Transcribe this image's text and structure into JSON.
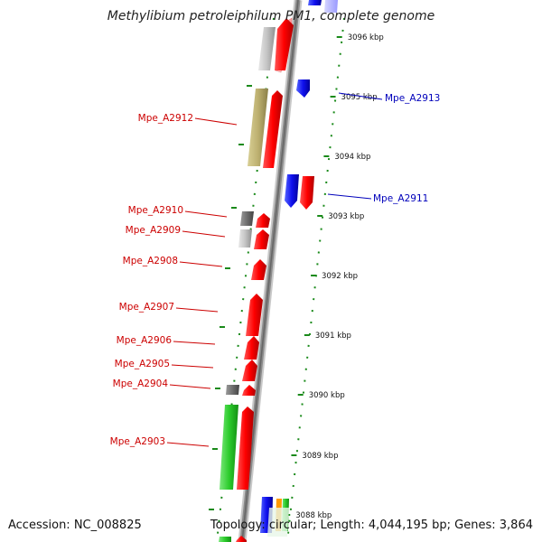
{
  "title": "Methylibium petroleiphilum PM1, complete genome",
  "footer": {
    "accession": "Accession: NC_008825",
    "topology": "Topology: circular; Length: 4,044,195 bp; Genes: 3,864"
  },
  "colors": {
    "forward_gene": "#ff0000",
    "reverse_gene": "#1010ee",
    "label_forward": "#cc0000",
    "label_reverse": "#0000bb",
    "tick": "#1a8a1a",
    "backbone": "#888888"
  },
  "ticks": [
    {
      "label": "3096 kbp"
    },
    {
      "label": "3095 kbp"
    },
    {
      "label": "3094 kbp"
    },
    {
      "label": "3093 kbp"
    },
    {
      "label": "3092 kbp"
    },
    {
      "label": "3091 kbp"
    },
    {
      "label": "3090 kbp"
    },
    {
      "label": "3089 kbp"
    },
    {
      "label": "3088 kbp"
    }
  ],
  "gene_labels": [
    {
      "label": "Mpe_A2913",
      "strand": "reverse"
    },
    {
      "label": "Mpe_A2912",
      "strand": "forward"
    },
    {
      "label": "Mpe_A2911",
      "strand": "reverse"
    },
    {
      "label": "Mpe_A2910",
      "strand": "forward"
    },
    {
      "label": "Mpe_A2909",
      "strand": "forward"
    },
    {
      "label": "Mpe_A2908",
      "strand": "forward"
    },
    {
      "label": "Mpe_A2907",
      "strand": "forward"
    },
    {
      "label": "Mpe_A2906",
      "strand": "forward"
    },
    {
      "label": "Mpe_A2905",
      "strand": "forward"
    },
    {
      "label": "Mpe_A2904",
      "strand": "forward"
    },
    {
      "label": "Mpe_A2903",
      "strand": "forward"
    }
  ]
}
